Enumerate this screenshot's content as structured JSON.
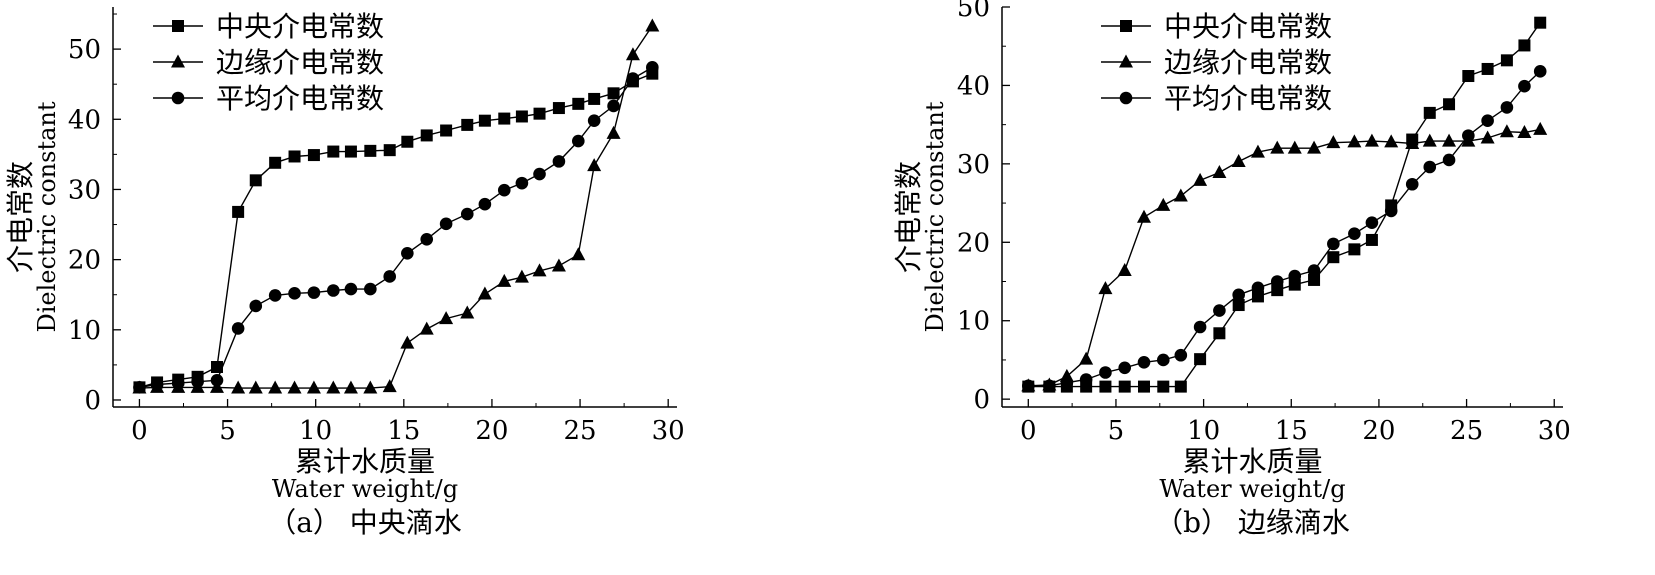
{
  "chart_data": [
    {
      "type": "line",
      "caption": "（a） 中央滴水",
      "xlabel_cn": "累计水质量",
      "xlabel_en": "Water weight/g",
      "ylabel_cn": "介电常数",
      "ylabel_en": "Dielectric constant",
      "xlim": [
        -1.5,
        30.5
      ],
      "ylim": [
        -1,
        56
      ],
      "xticks": [
        0,
        5,
        10,
        15,
        20,
        25,
        30
      ],
      "yticks": [
        0,
        10,
        20,
        30,
        40,
        50
      ],
      "legend_position": "top-left",
      "series": [
        {
          "name": "中央介电常数",
          "marker": "square",
          "points": [
            [
              0,
              1.8
            ],
            [
              1,
              2.5
            ],
            [
              2.2,
              2.9
            ],
            [
              3.3,
              3.3
            ],
            [
              4.4,
              4.7
            ],
            [
              5.6,
              26.8
            ],
            [
              6.6,
              31.3
            ],
            [
              7.7,
              33.8
            ],
            [
              8.8,
              34.7
            ],
            [
              9.9,
              34.9
            ],
            [
              11,
              35.4
            ],
            [
              12,
              35.4
            ],
            [
              13.1,
              35.5
            ],
            [
              14.2,
              35.6
            ],
            [
              15.2,
              36.8
            ],
            [
              16.3,
              37.7
            ],
            [
              17.4,
              38.4
            ],
            [
              18.6,
              39.2
            ],
            [
              19.6,
              39.8
            ],
            [
              20.7,
              40.1
            ],
            [
              21.7,
              40.4
            ],
            [
              22.7,
              40.8
            ],
            [
              23.8,
              41.6
            ],
            [
              24.9,
              42.2
            ],
            [
              25.8,
              42.9
            ],
            [
              26.9,
              43.7
            ],
            [
              28,
              45.4
            ],
            [
              29.1,
              46.5
            ]
          ]
        },
        {
          "name": "边缘介电常数",
          "marker": "triangle",
          "points": [
            [
              0,
              1.7
            ],
            [
              1,
              1.8
            ],
            [
              2.2,
              1.8
            ],
            [
              3.3,
              1.8
            ],
            [
              4.4,
              1.8
            ],
            [
              5.6,
              1.7
            ],
            [
              6.6,
              1.7
            ],
            [
              7.7,
              1.7
            ],
            [
              8.8,
              1.7
            ],
            [
              9.9,
              1.7
            ],
            [
              11,
              1.7
            ],
            [
              12,
              1.7
            ],
            [
              13.1,
              1.7
            ],
            [
              14.2,
              1.9
            ],
            [
              15.2,
              8.1
            ],
            [
              16.3,
              10.1
            ],
            [
              17.4,
              11.6
            ],
            [
              18.6,
              12.4
            ],
            [
              19.6,
              15.1
            ],
            [
              20.7,
              16.9
            ],
            [
              21.7,
              17.5
            ],
            [
              22.7,
              18.4
            ],
            [
              23.8,
              19.1
            ],
            [
              24.9,
              20.7
            ],
            [
              25.8,
              33.4
            ],
            [
              26.9,
              38.0
            ],
            [
              28,
              49.2
            ],
            [
              29.1,
              53.3
            ]
          ]
        },
        {
          "name": "平均介电常数",
          "marker": "circle",
          "points": [
            [
              0,
              1.8
            ],
            [
              1,
              2.2
            ],
            [
              2.2,
              2.4
            ],
            [
              3.3,
              2.6
            ],
            [
              4.4,
              2.8
            ],
            [
              5.6,
              10.2
            ],
            [
              6.6,
              13.4
            ],
            [
              7.7,
              14.9
            ],
            [
              8.8,
              15.2
            ],
            [
              9.9,
              15.3
            ],
            [
              11,
              15.6
            ],
            [
              12,
              15.8
            ],
            [
              13.1,
              15.8
            ],
            [
              14.2,
              17.6
            ],
            [
              15.2,
              20.9
            ],
            [
              16.3,
              22.9
            ],
            [
              17.4,
              25.1
            ],
            [
              18.6,
              26.5
            ],
            [
              19.6,
              27.9
            ],
            [
              20.7,
              29.9
            ],
            [
              21.7,
              30.9
            ],
            [
              22.7,
              32.2
            ],
            [
              23.8,
              34.0
            ],
            [
              24.9,
              36.9
            ],
            [
              25.8,
              39.8
            ],
            [
              26.9,
              41.9
            ],
            [
              28,
              45.8
            ],
            [
              29.1,
              47.4
            ]
          ]
        }
      ]
    },
    {
      "type": "line",
      "caption": "（b） 边缘滴水",
      "xlabel_cn": "累计水质量",
      "xlabel_en": "Water weight/g",
      "ylabel_cn": "介电常数",
      "ylabel_en": "Dielectric constant",
      "xlim": [
        -1.5,
        30.5
      ],
      "ylim": [
        -1,
        50
      ],
      "xticks": [
        0,
        5,
        10,
        15,
        20,
        25,
        30
      ],
      "yticks": [
        0,
        10,
        20,
        30,
        40,
        50
      ],
      "legend_position": "top-left",
      "series": [
        {
          "name": "中央介电常数",
          "marker": "square",
          "points": [
            [
              0,
              1.6
            ],
            [
              1.2,
              1.6
            ],
            [
              2.2,
              1.6
            ],
            [
              3.3,
              1.6
            ],
            [
              4.4,
              1.6
            ],
            [
              5.5,
              1.6
            ],
            [
              6.6,
              1.6
            ],
            [
              7.7,
              1.6
            ],
            [
              8.7,
              1.6
            ],
            [
              9.8,
              5.1
            ],
            [
              10.9,
              8.4
            ],
            [
              12,
              12.0
            ],
            [
              13.1,
              13.1
            ],
            [
              14.2,
              13.9
            ],
            [
              15.2,
              14.6
            ],
            [
              16.3,
              15.2
            ],
            [
              17.4,
              18.1
            ],
            [
              18.6,
              19.1
            ],
            [
              19.6,
              20.3
            ],
            [
              20.7,
              24.7
            ],
            [
              21.9,
              33.1
            ],
            [
              22.9,
              36.5
            ],
            [
              24,
              37.6
            ],
            [
              25.1,
              41.2
            ],
            [
              26.2,
              42.1
            ],
            [
              27.3,
              43.2
            ],
            [
              28.3,
              45.1
            ],
            [
              29.2,
              48.0
            ]
          ]
        },
        {
          "name": "边缘介电常数",
          "marker": "triangle",
          "points": [
            [
              0,
              1.7
            ],
            [
              1.2,
              1.8
            ],
            [
              2.2,
              2.9
            ],
            [
              3.3,
              5.1
            ],
            [
              4.4,
              14.1
            ],
            [
              5.5,
              16.4
            ],
            [
              6.6,
              23.2
            ],
            [
              7.7,
              24.7
            ],
            [
              8.7,
              25.9
            ],
            [
              9.8,
              27.9
            ],
            [
              10.9,
              28.9
            ],
            [
              12,
              30.3
            ],
            [
              13.1,
              31.5
            ],
            [
              14.2,
              32.0
            ],
            [
              15.2,
              32.0
            ],
            [
              16.3,
              32.0
            ],
            [
              17.4,
              32.7
            ],
            [
              18.6,
              32.8
            ],
            [
              19.6,
              32.9
            ],
            [
              20.7,
              32.8
            ],
            [
              21.9,
              32.6
            ],
            [
              22.9,
              32.9
            ],
            [
              24,
              32.9
            ],
            [
              25.1,
              32.9
            ],
            [
              26.2,
              33.3
            ],
            [
              27.3,
              34.1
            ],
            [
              28.3,
              34.0
            ],
            [
              29.2,
              34.4
            ]
          ]
        },
        {
          "name": "平均介电常数",
          "marker": "circle",
          "points": [
            [
              0,
              1.7
            ],
            [
              1.2,
              1.7
            ],
            [
              2.2,
              2.1
            ],
            [
              3.3,
              2.5
            ],
            [
              4.4,
              3.4
            ],
            [
              5.5,
              4.0
            ],
            [
              6.6,
              4.7
            ],
            [
              7.7,
              5.0
            ],
            [
              8.7,
              5.6
            ],
            [
              9.8,
              9.2
            ],
            [
              10.9,
              11.3
            ],
            [
              12,
              13.3
            ],
            [
              13.1,
              14.2
            ],
            [
              14.2,
              15.0
            ],
            [
              15.2,
              15.7
            ],
            [
              16.3,
              16.4
            ],
            [
              17.4,
              19.8
            ],
            [
              18.6,
              21.1
            ],
            [
              19.6,
              22.5
            ],
            [
              20.7,
              24.0
            ],
            [
              21.9,
              27.4
            ],
            [
              22.9,
              29.6
            ],
            [
              24,
              30.5
            ],
            [
              25.1,
              33.6
            ],
            [
              26.2,
              35.5
            ],
            [
              27.3,
              37.2
            ],
            [
              28.3,
              39.9
            ],
            [
              29.2,
              41.8
            ]
          ]
        }
      ]
    }
  ]
}
